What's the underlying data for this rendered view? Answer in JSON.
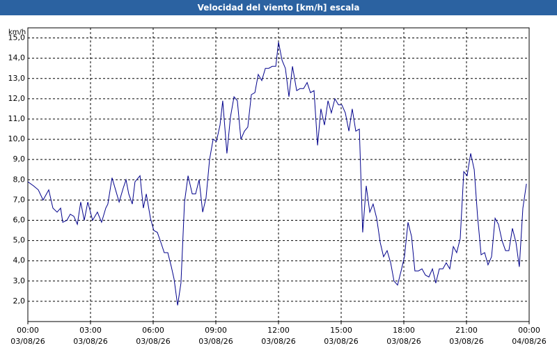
{
  "chart_data": {
    "type": "line",
    "title": "Velocidad del viento [km/h] escala",
    "y_label": "km/h",
    "x": [
      0,
      0.27,
      0.5,
      0.73,
      1.0,
      1.2,
      1.4,
      1.57,
      1.67,
      1.87,
      2.03,
      2.2,
      2.37,
      2.53,
      2.7,
      2.87,
      3.1,
      3.33,
      3.53,
      3.73,
      3.83,
      4.03,
      4.2,
      4.37,
      4.57,
      4.7,
      4.83,
      5.0,
      5.13,
      5.37,
      5.53,
      5.67,
      5.87,
      6.03,
      6.2,
      6.37,
      6.53,
      6.7,
      6.87,
      7.0,
      7.17,
      7.33,
      7.5,
      7.67,
      7.87,
      8.03,
      8.2,
      8.37,
      8.53,
      8.7,
      8.87,
      9.03,
      9.2,
      9.33,
      9.53,
      9.7,
      9.87,
      10.03,
      10.2,
      10.37,
      10.53,
      10.7,
      10.87,
      11.03,
      11.2,
      11.37,
      11.53,
      11.7,
      11.87,
      12.0,
      12.17,
      12.33,
      12.5,
      12.67,
      12.87,
      13.03,
      13.2,
      13.37,
      13.53,
      13.7,
      13.87,
      14.03,
      14.2,
      14.37,
      14.53,
      14.7,
      14.87,
      15.03,
      15.2,
      15.37,
      15.53,
      15.7,
      15.87,
      16.03,
      16.2,
      16.37,
      16.53,
      16.7,
      16.87,
      17.03,
      17.2,
      17.37,
      17.53,
      17.7,
      17.87,
      18.03,
      18.2,
      18.37,
      18.53,
      18.7,
      18.87,
      19.03,
      19.2,
      19.37,
      19.53,
      19.7,
      19.87,
      20.03,
      20.2,
      20.37,
      20.53,
      20.7,
      20.87,
      21.03,
      21.2,
      21.37,
      21.53,
      21.7,
      21.87,
      22.03,
      22.2,
      22.37,
      22.53,
      22.7,
      22.87,
      23.03,
      23.2,
      23.37,
      23.53,
      23.7,
      23.87
    ],
    "series": [
      {
        "name": "Velocidad del viento",
        "color": "#00008b",
        "values": [
          7.9,
          7.7,
          7.5,
          7.0,
          7.5,
          6.6,
          6.4,
          6.6,
          5.9,
          6.0,
          6.3,
          6.2,
          5.8,
          6.9,
          6.0,
          6.9,
          6.0,
          6.4,
          5.9,
          6.6,
          6.8,
          8.1,
          7.5,
          6.9,
          7.6,
          8.0,
          7.3,
          6.8,
          7.9,
          8.2,
          6.6,
          7.3,
          6.1,
          5.5,
          5.4,
          4.9,
          4.4,
          4.4,
          3.7,
          3.1,
          1.8,
          2.9,
          6.9,
          8.2,
          7.3,
          7.3,
          8.0,
          6.4,
          7.1,
          9.0,
          10.0,
          9.9,
          10.7,
          11.9,
          9.3,
          11.1,
          12.1,
          11.9,
          10.0,
          10.4,
          10.6,
          12.2,
          12.3,
          13.2,
          12.9,
          13.5,
          13.5,
          13.6,
          13.6,
          14.8,
          13.9,
          13.5,
          12.1,
          13.6,
          12.4,
          12.5,
          12.5,
          12.8,
          12.3,
          12.4,
          9.7,
          11.5,
          10.7,
          11.9,
          11.3,
          12.0,
          11.7,
          11.7,
          11.3,
          10.4,
          11.5,
          10.4,
          10.5,
          5.4,
          7.7,
          6.4,
          6.8,
          6.1,
          4.9,
          4.2,
          4.5,
          3.9,
          3.0,
          2.8,
          3.5,
          4.2,
          5.9,
          5.2,
          3.5,
          3.5,
          3.6,
          3.3,
          3.2,
          3.6,
          2.9,
          3.6,
          3.6,
          3.9,
          3.6,
          4.7,
          4.4,
          5.1,
          8.4,
          8.2,
          9.3,
          8.5,
          6.2,
          4.3,
          4.4,
          3.8,
          4.2,
          6.1,
          5.8,
          5.0,
          4.5,
          4.5,
          5.6,
          4.9,
          3.7,
          6.6,
          7.8
        ]
      }
    ],
    "xlim": [
      0,
      24
    ],
    "xticks": [
      {
        "value": 0,
        "label": "00:00",
        "date": "03/08/26"
      },
      {
        "value": 3,
        "label": "03:00",
        "date": "03/08/26"
      },
      {
        "value": 6,
        "label": "06:00",
        "date": "03/08/26"
      },
      {
        "value": 9,
        "label": "09:00",
        "date": "03/08/26"
      },
      {
        "value": 12,
        "label": "12:00",
        "date": "03/08/26"
      },
      {
        "value": 15,
        "label": "15:00",
        "date": "03/08/26"
      },
      {
        "value": 18,
        "label": "18:00",
        "date": "03/08/26"
      },
      {
        "value": 21,
        "label": "21:00",
        "date": "03/08/26"
      },
      {
        "value": 24,
        "label": "00:00",
        "date": "04/08/26"
      }
    ],
    "ylim": [
      1,
      15.5
    ],
    "yticks": [
      {
        "value": 2,
        "label": "2,0"
      },
      {
        "value": 3,
        "label": "3,0"
      },
      {
        "value": 4,
        "label": "4,0"
      },
      {
        "value": 5,
        "label": "5,0"
      },
      {
        "value": 6,
        "label": "6,0"
      },
      {
        "value": 7,
        "label": "7,0"
      },
      {
        "value": 8,
        "label": "8,0"
      },
      {
        "value": 9,
        "label": "9,0"
      },
      {
        "value": 10,
        "label": "10,0"
      },
      {
        "value": 11,
        "label": "11,0"
      },
      {
        "value": 12,
        "label": "12,0"
      },
      {
        "value": 13,
        "label": "13,0"
      },
      {
        "value": 14,
        "label": "14,0"
      },
      {
        "value": 15,
        "label": "15,0"
      }
    ],
    "grid": true
  }
}
